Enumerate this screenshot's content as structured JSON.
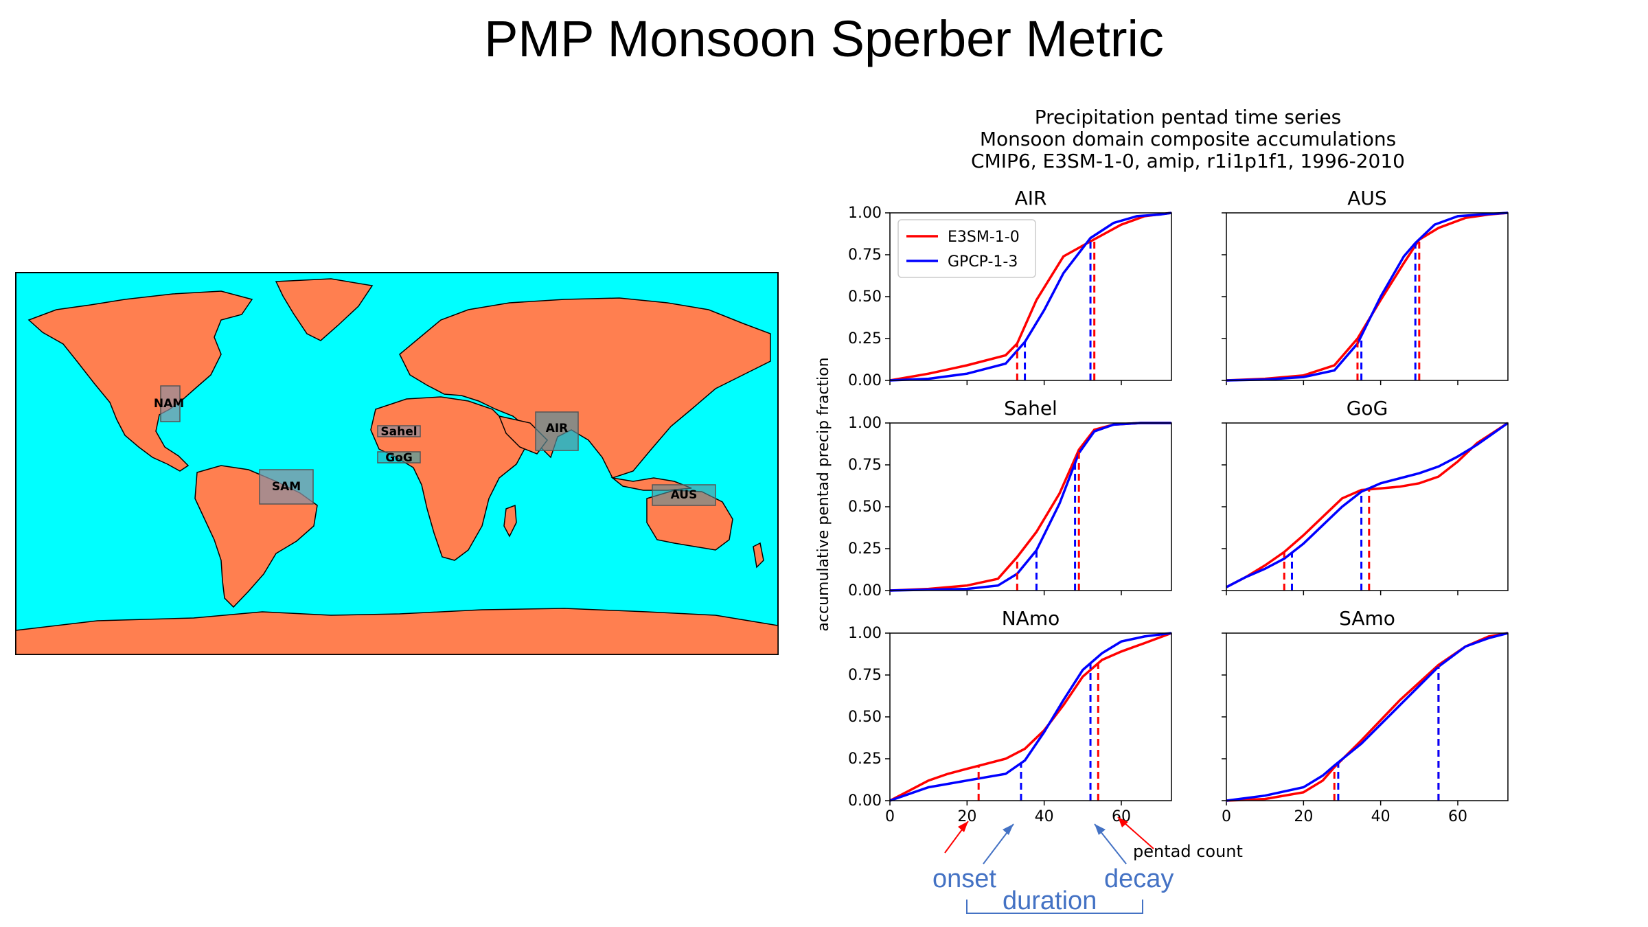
{
  "slide": {
    "title": "PMP Monsoon Sperber Metric"
  },
  "map": {
    "ocean_color": "#00ffff",
    "land_color": "#ff7f50",
    "regions": [
      {
        "label": "NAM"
      },
      {
        "label": "Sahel"
      },
      {
        "label": "GoG"
      },
      {
        "label": "AIR"
      },
      {
        "label": "SAM"
      },
      {
        "label": "AUS"
      }
    ]
  },
  "chart_data": {
    "type": "line",
    "title_lines": [
      "Precipitation pentad time series",
      "Monsoon domain composite accumulations",
      "CMIP6, E3SM-1-0, amip, r1i1p1f1, 1996-2010"
    ],
    "ylabel": "accumulative pentad precip fraction",
    "xlabel": "pentad count",
    "xlim": [
      0,
      73
    ],
    "ylim": [
      0,
      1
    ],
    "xticks": [
      0,
      20,
      40,
      60
    ],
    "yticks": [
      "0.00",
      "0.25",
      "0.50",
      "0.75",
      "1.00"
    ],
    "legend": {
      "placement": "upper-left",
      "entries": [
        "E3SM-1-0",
        "GPCP-1-3"
      ]
    },
    "colors": {
      "E3SM-1-0": "#ff0000",
      "GPCP-1-3": "#0000ff"
    },
    "panels": [
      {
        "name": "AIR",
        "series": [
          {
            "name": "E3SM-1-0",
            "x": [
              0,
              10,
              20,
              30,
              33,
              38,
              45,
              52,
              60,
              66,
              73
            ],
            "y": [
              0,
              0.04,
              0.09,
              0.15,
              0.22,
              0.48,
              0.74,
              0.83,
              0.93,
              0.98,
              1
            ]
          },
          {
            "name": "GPCP-1-3",
            "x": [
              0,
              10,
              20,
              30,
              35,
              40,
              45,
              52,
              58,
              64,
              70,
              73
            ],
            "y": [
              0,
              0.01,
              0.04,
              0.1,
              0.23,
              0.42,
              0.64,
              0.85,
              0.94,
              0.98,
              0.99,
              1
            ]
          }
        ],
        "onset": {
          "E3SM-1-0": 33,
          "GPCP-1-3": 35
        },
        "decay": {
          "E3SM-1-0": 53,
          "GPCP-1-3": 52
        }
      },
      {
        "name": "AUS",
        "series": [
          {
            "name": "E3SM-1-0",
            "x": [
              0,
              10,
              20,
              28,
              34,
              40,
              46,
              50,
              55,
              62,
              68,
              73
            ],
            "y": [
              0,
              0.01,
              0.03,
              0.09,
              0.25,
              0.48,
              0.7,
              0.84,
              0.91,
              0.97,
              0.99,
              1
            ]
          },
          {
            "name": "GPCP-1-3",
            "x": [
              0,
              10,
              20,
              28,
              34,
              40,
              46,
              49,
              54,
              60,
              66,
              73
            ],
            "y": [
              0,
              0.005,
              0.02,
              0.06,
              0.22,
              0.5,
              0.74,
              0.82,
              0.93,
              0.98,
              0.99,
              1
            ]
          }
        ],
        "onset": {
          "E3SM-1-0": 34,
          "GPCP-1-3": 35
        },
        "decay": {
          "E3SM-1-0": 50,
          "GPCP-1-3": 49
        }
      },
      {
        "name": "Sahel",
        "series": [
          {
            "name": "E3SM-1-0",
            "x": [
              0,
              10,
              20,
              28,
              33,
              38,
              44,
              49,
              53,
              58,
              65,
              73
            ],
            "y": [
              0,
              0.01,
              0.03,
              0.07,
              0.2,
              0.35,
              0.58,
              0.84,
              0.96,
              0.99,
              1,
              1
            ]
          },
          {
            "name": "GPCP-1-3",
            "x": [
              0,
              10,
              20,
              28,
              33,
              38,
              44,
              49,
              53,
              58,
              65,
              73
            ],
            "y": [
              0,
              0.005,
              0.01,
              0.03,
              0.1,
              0.24,
              0.52,
              0.82,
              0.95,
              0.99,
              1,
              1
            ]
          }
        ],
        "onset": {
          "E3SM-1-0": 33,
          "GPCP-1-3": 38
        },
        "decay": {
          "E3SM-1-0": 49,
          "GPCP-1-3": 48
        }
      },
      {
        "name": "GoG",
        "series": [
          {
            "name": "E3SM-1-0",
            "x": [
              0,
              5,
              10,
              15,
              20,
              25,
              30,
              35,
              40,
              45,
              50,
              55,
              60,
              65,
              73
            ],
            "y": [
              0.02,
              0.08,
              0.15,
              0.23,
              0.33,
              0.44,
              0.55,
              0.6,
              0.61,
              0.62,
              0.64,
              0.68,
              0.77,
              0.88,
              1
            ]
          },
          {
            "name": "GPCP-1-3",
            "x": [
              0,
              5,
              10,
              15,
              20,
              25,
              30,
              35,
              40,
              45,
              50,
              55,
              60,
              65,
              73
            ],
            "y": [
              0.02,
              0.08,
              0.13,
              0.19,
              0.28,
              0.39,
              0.5,
              0.59,
              0.64,
              0.67,
              0.7,
              0.74,
              0.8,
              0.87,
              1
            ]
          }
        ],
        "onset": {
          "E3SM-1-0": 15,
          "GPCP-1-3": 17
        },
        "decay": {
          "E3SM-1-0": 37,
          "GPCP-1-3": 35
        }
      },
      {
        "name": "NAmo",
        "series": [
          {
            "name": "E3SM-1-0",
            "x": [
              0,
              5,
              10,
              15,
              20,
              25,
              30,
              35,
              40,
              45,
              50,
              55,
              60,
              66,
              73
            ],
            "y": [
              0,
              0.06,
              0.12,
              0.16,
              0.19,
              0.22,
              0.25,
              0.31,
              0.42,
              0.57,
              0.74,
              0.84,
              0.89,
              0.94,
              1
            ]
          },
          {
            "name": "GPCP-1-3",
            "x": [
              0,
              5,
              10,
              15,
              20,
              25,
              30,
              35,
              40,
              45,
              50,
              55,
              60,
              66,
              73
            ],
            "y": [
              0,
              0.04,
              0.08,
              0.1,
              0.12,
              0.14,
              0.16,
              0.24,
              0.41,
              0.6,
              0.78,
              0.88,
              0.95,
              0.98,
              1
            ]
          }
        ],
        "onset": {
          "E3SM-1-0": 23,
          "GPCP-1-3": 34
        },
        "decay": {
          "E3SM-1-0": 54,
          "GPCP-1-3": 52
        }
      },
      {
        "name": "SAmo",
        "series": [
          {
            "name": "E3SM-1-0",
            "x": [
              0,
              10,
              20,
              25,
              28,
              35,
              45,
              55,
              62,
              68,
              73
            ],
            "y": [
              0,
              0.01,
              0.05,
              0.12,
              0.2,
              0.36,
              0.6,
              0.81,
              0.92,
              0.98,
              1
            ]
          },
          {
            "name": "GPCP-1-3",
            "x": [
              0,
              10,
              20,
              25,
              28,
              35,
              45,
              55,
              62,
              68,
              73
            ],
            "y": [
              0,
              0.03,
              0.08,
              0.15,
              0.21,
              0.34,
              0.57,
              0.8,
              0.92,
              0.97,
              1
            ]
          }
        ],
        "onset": {
          "E3SM-1-0": 28,
          "GPCP-1-3": 29
        },
        "decay": {
          "E3SM-1-0": 55,
          "GPCP-1-3": 55
        }
      }
    ],
    "annotations": [
      "onset",
      "duration",
      "decay",
      "pentad count"
    ]
  }
}
